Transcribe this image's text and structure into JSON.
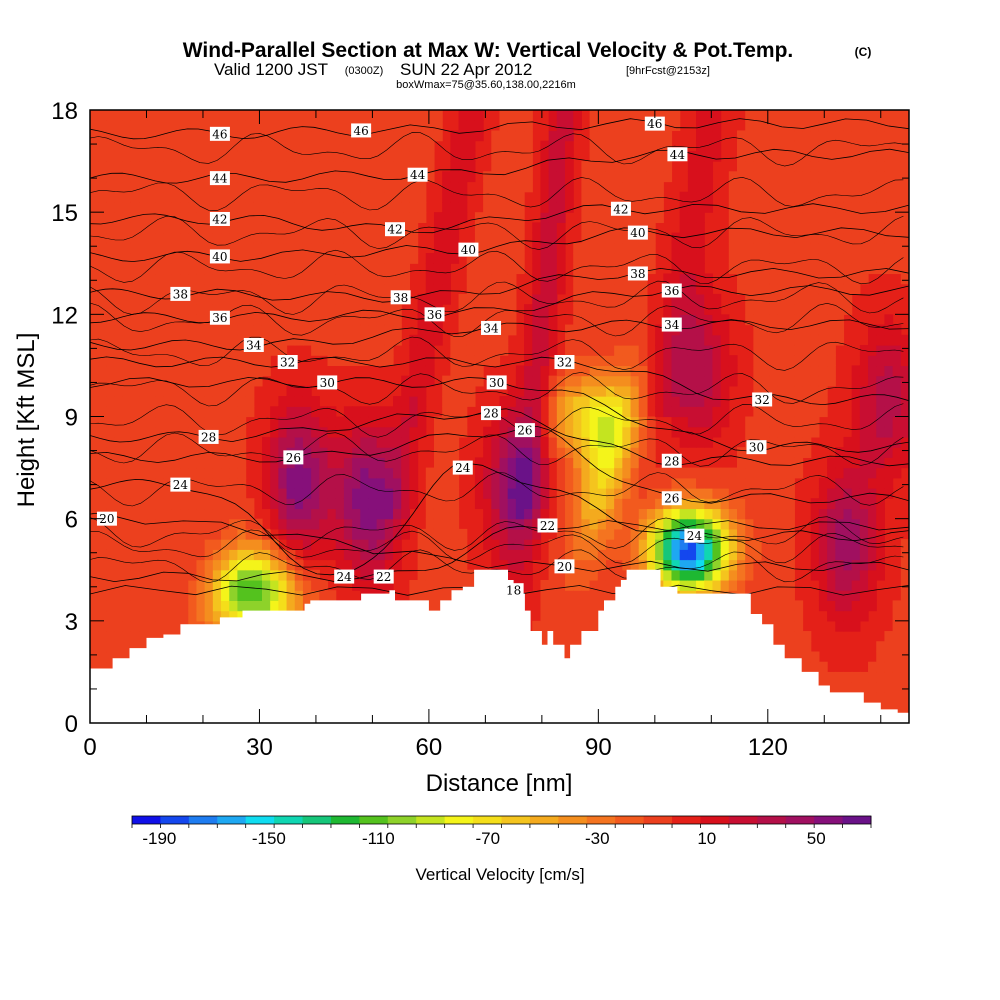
{
  "header": {
    "title": "Wind-Parallel Section at Max W: Vertical Velocity & Pot.Temp.",
    "copyright": "(C)",
    "valid_prefix": "Valid 1200 JST",
    "valid_utc": "(0300Z)",
    "valid_date": "SUN 22 Apr 2012",
    "forecast": "[9hrFcst@2153z]",
    "box_info": "boxWmax=75@35.60,138.00,2216m"
  },
  "chart_data": {
    "type": "heatmap",
    "xlabel": "Distance [nm]",
    "ylabel": "Height [Kft MSL]",
    "xlim": [
      0,
      145
    ],
    "ylim": [
      0,
      18
    ],
    "x_ticks": [
      "0",
      "30",
      "60",
      "90",
      "120"
    ],
    "x_tick_values": [
      0,
      30,
      60,
      90,
      120
    ],
    "y_ticks": [
      "0",
      "3",
      "6",
      "9",
      "12",
      "15",
      "18"
    ],
    "y_tick_values": [
      0,
      3,
      6,
      9,
      12,
      15,
      18
    ],
    "grid": false,
    "terrain_kft": [
      [
        0,
        1.6
      ],
      [
        4,
        1.9
      ],
      [
        7,
        2.2
      ],
      [
        10,
        2.5
      ],
      [
        13,
        2.6
      ],
      [
        16,
        2.9
      ],
      [
        23,
        3.1
      ],
      [
        27,
        3.3
      ],
      [
        38,
        3.5
      ],
      [
        39,
        3.6
      ],
      [
        47,
        3.6
      ],
      [
        48,
        3.8
      ],
      [
        53,
        3.9
      ],
      [
        54,
        3.6
      ],
      [
        59,
        3.6
      ],
      [
        60,
        3.3
      ],
      [
        61,
        3.3
      ],
      [
        62,
        3.6
      ],
      [
        64,
        3.9
      ],
      [
        66,
        4.0
      ],
      [
        68,
        4.5
      ],
      [
        72,
        4.5
      ],
      [
        74,
        4.2
      ],
      [
        75,
        3.8
      ],
      [
        77,
        3.3
      ],
      [
        78,
        2.7
      ],
      [
        80,
        2.3
      ],
      [
        81,
        2.7
      ],
      [
        82,
        2.3
      ],
      [
        84,
        1.9
      ],
      [
        85,
        2.3
      ],
      [
        87,
        2.7
      ],
      [
        90,
        3.3
      ],
      [
        91,
        3.6
      ],
      [
        93,
        4.0
      ],
      [
        94,
        4.2
      ],
      [
        95,
        4.5
      ],
      [
        97,
        4.5
      ],
      [
        101,
        4.0
      ],
      [
        104,
        3.8
      ],
      [
        108,
        3.8
      ],
      [
        115,
        3.8
      ],
      [
        117,
        3.2
      ],
      [
        119,
        2.9
      ],
      [
        121,
        2.3
      ],
      [
        123,
        1.9
      ],
      [
        126,
        1.5
      ],
      [
        129,
        1.1
      ],
      [
        131,
        0.9
      ],
      [
        137,
        0.6
      ],
      [
        140,
        0.4
      ],
      [
        143,
        0.3
      ],
      [
        145,
        0.3
      ]
    ],
    "colorbar": {
      "label": "Vertical Velocity [cm/s]",
      "tick_labels": [
        "-190",
        "-150",
        "-110",
        "-70",
        "-30",
        "10",
        "50"
      ],
      "tick_values": [
        -190,
        -150,
        -110,
        -70,
        -30,
        10,
        50
      ],
      "range": [
        -200,
        70
      ],
      "colors": [
        "#1010e8",
        "#1447ee",
        "#1e7cf0",
        "#1ea8f2",
        "#10dcf0",
        "#10d6b2",
        "#16c67a",
        "#1eb832",
        "#54c21e",
        "#8ed22a",
        "#c4e420",
        "#f4f41a",
        "#f4de1a",
        "#f4c41e",
        "#f4aa1e",
        "#f48e1e",
        "#f47420",
        "#f25a1e",
        "#ec401e",
        "#e42018",
        "#d8101c",
        "#c80e32",
        "#b41048",
        "#a01060",
        "#86107a",
        "#6a1288"
      ]
    },
    "wind_features_cm_s": [
      {
        "x": 37,
        "y": 7.1,
        "value": 60
      },
      {
        "x": 49,
        "y": 6.6,
        "value": 60
      },
      {
        "x": 75,
        "y": 7.0,
        "value": 50
      },
      {
        "x": 108,
        "y": 10.3,
        "value": 40
      },
      {
        "x": 134,
        "y": 5.3,
        "value": 50
      },
      {
        "x": 141,
        "y": 9.5,
        "value": 40
      },
      {
        "x": 106,
        "y": 5.1,
        "value": -180
      },
      {
        "x": 30,
        "y": 3.8,
        "value": -100
      },
      {
        "x": 88,
        "y": 9.0,
        "value": -60
      }
    ],
    "isentrope_labels": [
      {
        "text": "46",
        "x": 23,
        "y": 17.3
      },
      {
        "text": "46",
        "x": 48,
        "y": 17.4
      },
      {
        "text": "46",
        "x": 100,
        "y": 17.6
      },
      {
        "text": "44",
        "x": 23,
        "y": 16.0
      },
      {
        "text": "44",
        "x": 58,
        "y": 16.1
      },
      {
        "text": "44",
        "x": 104,
        "y": 16.7
      },
      {
        "text": "42",
        "x": 23,
        "y": 14.8
      },
      {
        "text": "42",
        "x": 54,
        "y": 14.5
      },
      {
        "text": "42",
        "x": 94,
        "y": 15.1
      },
      {
        "text": "40",
        "x": 23,
        "y": 13.7
      },
      {
        "text": "40",
        "x": 67,
        "y": 13.9
      },
      {
        "text": "40",
        "x": 97,
        "y": 14.4
      },
      {
        "text": "38",
        "x": 16,
        "y": 12.6
      },
      {
        "text": "38",
        "x": 55,
        "y": 12.5
      },
      {
        "text": "38",
        "x": 97,
        "y": 13.2
      },
      {
        "text": "36",
        "x": 23,
        "y": 11.9
      },
      {
        "text": "36",
        "x": 61,
        "y": 12.0
      },
      {
        "text": "36",
        "x": 103,
        "y": 12.7
      },
      {
        "text": "34",
        "x": 29,
        "y": 11.1
      },
      {
        "text": "34",
        "x": 71,
        "y": 11.6
      },
      {
        "text": "34",
        "x": 103,
        "y": 11.7
      },
      {
        "text": "32",
        "x": 35,
        "y": 10.6
      },
      {
        "text": "32",
        "x": 84,
        "y": 10.6
      },
      {
        "text": "32",
        "x": 119,
        "y": 9.5
      },
      {
        "text": "30",
        "x": 42,
        "y": 10.0
      },
      {
        "text": "30",
        "x": 72,
        "y": 10.0
      },
      {
        "text": "30",
        "x": 118,
        "y": 8.1
      },
      {
        "text": "28",
        "x": 21,
        "y": 8.4
      },
      {
        "text": "28",
        "x": 71,
        "y": 9.1
      },
      {
        "text": "28",
        "x": 103,
        "y": 7.7
      },
      {
        "text": "26",
        "x": 36,
        "y": 7.8
      },
      {
        "text": "26",
        "x": 77,
        "y": 8.6
      },
      {
        "text": "26",
        "x": 103,
        "y": 6.6
      },
      {
        "text": "24",
        "x": 16,
        "y": 7.0
      },
      {
        "text": "24",
        "x": 66,
        "y": 7.5
      },
      {
        "text": "24",
        "x": 107,
        "y": 5.5
      },
      {
        "text": "24",
        "x": 45,
        "y": 4.3
      },
      {
        "text": "22",
        "x": 81,
        "y": 5.8
      },
      {
        "text": "22",
        "x": 52,
        "y": 4.3
      },
      {
        "text": "20",
        "x": 3,
        "y": 6.0
      },
      {
        "text": "20",
        "x": 84,
        "y": 4.6
      },
      {
        "text": "18",
        "x": 75,
        "y": 3.9
      }
    ]
  }
}
